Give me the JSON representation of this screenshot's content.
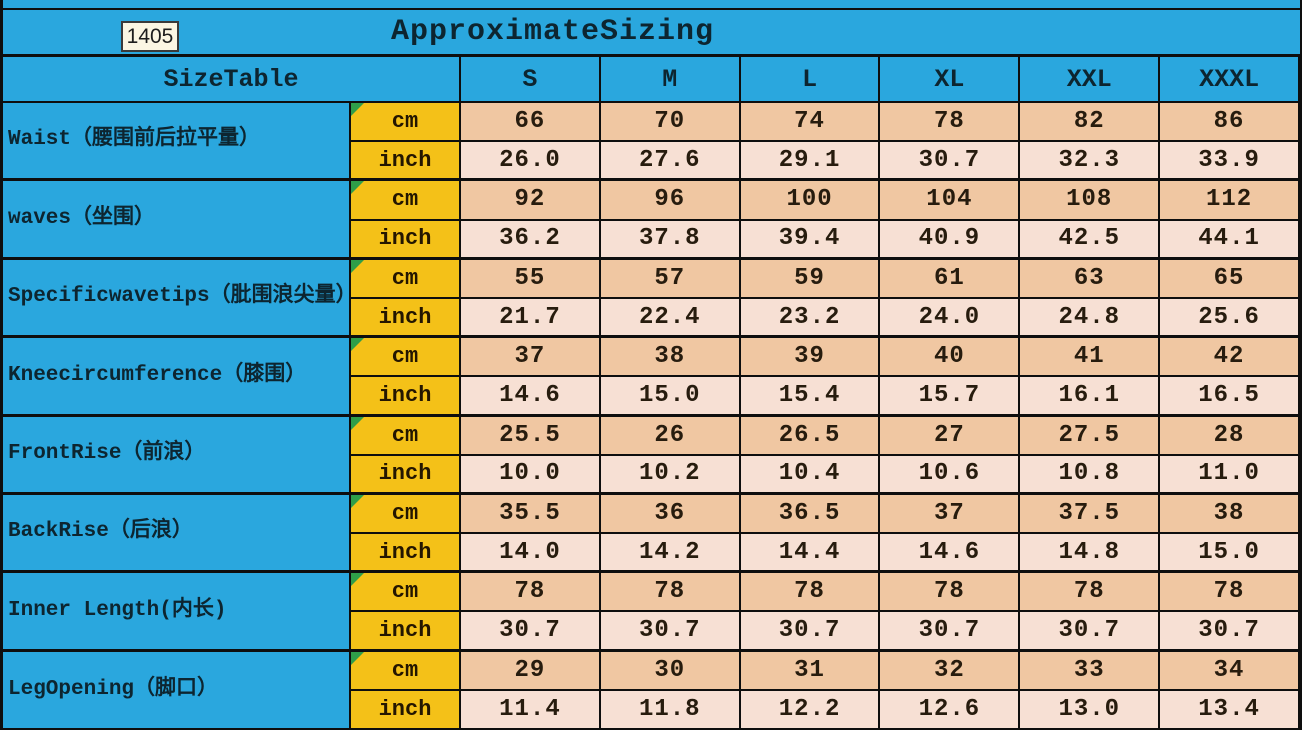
{
  "page": {
    "model_number": "1405",
    "title": "ApproximateSizing"
  },
  "table": {
    "header": {
      "label": "SizeTable",
      "sizes": [
        "S",
        "M",
        "L",
        "XL",
        "XXL",
        "XXXL"
      ]
    },
    "unit_labels": {
      "cm": "cm",
      "inch": "inch"
    },
    "rows": [
      {
        "label": "Waist（腰围前后拉平量）",
        "cm": [
          "66",
          "70",
          "74",
          "78",
          "82",
          "86"
        ],
        "inch": [
          "26.0",
          "27.6",
          "29.1",
          "30.7",
          "32.3",
          "33.9"
        ]
      },
      {
        "label": "waves（坐围）",
        "cm": [
          "92",
          "96",
          "100",
          "104",
          "108",
          "112"
        ],
        "inch": [
          "36.2",
          "37.8",
          "39.4",
          "40.9",
          "42.5",
          "44.1"
        ]
      },
      {
        "label": "Specificwavetips（肶围浪尖量）",
        "cm": [
          "55",
          "57",
          "59",
          "61",
          "63",
          "65"
        ],
        "inch": [
          "21.7",
          "22.4",
          "23.2",
          "24.0",
          "24.8",
          "25.6"
        ]
      },
      {
        "label": "Kneecircumference（膝围）",
        "cm": [
          "37",
          "38",
          "39",
          "40",
          "41",
          "42"
        ],
        "inch": [
          "14.6",
          "15.0",
          "15.4",
          "15.7",
          "16.1",
          "16.5"
        ]
      },
      {
        "label": "FrontRise（前浪）",
        "cm": [
          "25.5",
          "26",
          "26.5",
          "27",
          "27.5",
          "28"
        ],
        "inch": [
          "10.0",
          "10.2",
          "10.4",
          "10.6",
          "10.8",
          "11.0"
        ]
      },
      {
        "label": "BackRise（后浪）",
        "cm": [
          "35.5",
          "36",
          "36.5",
          "37",
          "37.5",
          "38"
        ],
        "inch": [
          "14.0",
          "14.2",
          "14.4",
          "14.6",
          "14.8",
          "15.0"
        ]
      },
      {
        "label": "Inner Length(内长)",
        "cm": [
          "78",
          "78",
          "78",
          "78",
          "78",
          "78"
        ],
        "inch": [
          "30.7",
          "30.7",
          "30.7",
          "30.7",
          "30.7",
          "30.7"
        ]
      },
      {
        "label": "LegOpening（脚口）",
        "cm": [
          "29",
          "30",
          "31",
          "32",
          "33",
          "34"
        ],
        "inch": [
          "11.4",
          "11.8",
          "12.2",
          "12.6",
          "13.0",
          "13.4"
        ]
      }
    ]
  },
  "colors": {
    "sheet_background": "#2AA7DE",
    "unit_cell": "#F4C118",
    "cm_row": "#F0C7A2",
    "inch_row": "#F7E0D4",
    "corner_triangle": "#2F9E49",
    "model_box_background": "#FBF6E3",
    "grid_line": "#0E0E0E"
  }
}
